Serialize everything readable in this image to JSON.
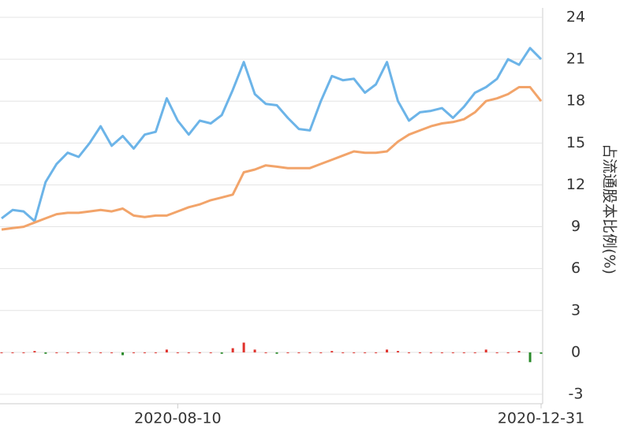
{
  "chart_data": {
    "type": "line",
    "y_label": "占流通股本比例(%)",
    "categories": [
      null,
      null,
      null,
      null,
      null,
      null,
      null,
      null,
      null,
      null,
      null,
      null,
      null,
      null,
      null,
      null,
      "2020-08-10",
      null,
      null,
      null,
      null,
      null,
      null,
      null,
      null,
      null,
      null,
      null,
      null,
      null,
      null,
      null,
      null,
      null,
      null,
      null,
      null,
      null,
      null,
      null,
      null,
      null,
      null,
      null,
      null,
      null,
      null,
      null,
      null,
      "2020-12-31"
    ],
    "series": [
      {
        "color": "#6cb4e8",
        "values": [
          9.6,
          10.2,
          10.1,
          9.4,
          12.2,
          13.5,
          14.3,
          14.0,
          15.0,
          16.2,
          14.8,
          15.5,
          14.6,
          15.6,
          15.8,
          18.2,
          16.6,
          15.6,
          16.6,
          16.4,
          17.0,
          18.8,
          20.8,
          18.5,
          17.8,
          17.7,
          16.8,
          16.0,
          15.9,
          18.0,
          19.8,
          19.5,
          19.6,
          18.6,
          19.2,
          20.8,
          18.0,
          16.6,
          17.2,
          17.3,
          17.5,
          16.8,
          17.6,
          18.6,
          19.0,
          19.6,
          21.0,
          20.6,
          21.8,
          21.0
        ]
      },
      {
        "color": "#f2a46a",
        "values": [
          8.8,
          8.9,
          9.0,
          9.3,
          9.6,
          9.9,
          10.0,
          10.0,
          10.1,
          10.2,
          10.1,
          10.3,
          9.8,
          9.7,
          9.8,
          9.8,
          10.1,
          10.4,
          10.6,
          10.9,
          11.1,
          11.3,
          12.9,
          13.1,
          13.4,
          13.3,
          13.2,
          13.2,
          13.2,
          13.5,
          13.8,
          14.1,
          14.4,
          14.3,
          14.3,
          14.4,
          15.1,
          15.6,
          15.9,
          16.2,
          16.4,
          16.5,
          16.7,
          17.2,
          18.0,
          18.2,
          18.5,
          19.0,
          19.0,
          18.0
        ]
      },
      {
        "kind": "bar",
        "up_color": "#e0302a",
        "down_color": "#2a8a2a",
        "values": [
          0,
          0,
          0,
          0.1,
          -0.1,
          0,
          0,
          0,
          0,
          0,
          0,
          -0.2,
          0,
          0,
          0,
          0.2,
          0,
          0,
          0,
          0,
          -0.1,
          0.3,
          0.7,
          0.2,
          0,
          -0.1,
          0,
          0,
          0,
          0,
          0.1,
          0,
          0,
          0,
          0,
          0.2,
          0.1,
          0,
          0,
          0,
          0,
          0,
          0,
          0,
          0.2,
          0,
          0,
          0.1,
          -0.7,
          -0.1
        ]
      }
    ],
    "ylim": [
      -3,
      24
    ],
    "yticks": [
      -3,
      0,
      3,
      6,
      9,
      12,
      15,
      18,
      21,
      24
    ],
    "grid": true
  }
}
